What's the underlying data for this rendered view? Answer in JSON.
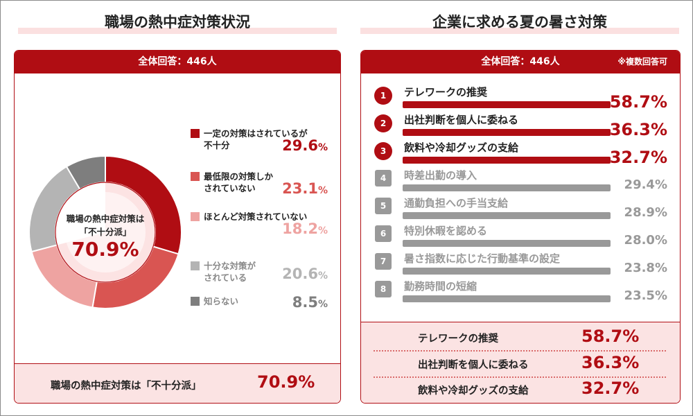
{
  "left": {
    "title": "職場の熱中症対策状況",
    "header": "全体回答：446人",
    "center_line1": "職場の熱中症対策は",
    "center_line2": "「不十分派」",
    "center_value": "70.9%",
    "summary_label": "職場の熱中症対策は「不十分派」",
    "summary_value": "70.9%"
  },
  "right": {
    "title": "企業に求める夏の暑さ対策",
    "header": "全体回答：446人",
    "note": "※複数回答可",
    "top3": [
      {
        "label": "テレワークの推奨",
        "value": "58.7%"
      },
      {
        "label": "出社判断を個人に委ねる",
        "value": "36.3%"
      },
      {
        "label": "飲料や冷却グッズの支給",
        "value": "32.7%"
      }
    ]
  },
  "chart_data": [
    {
      "type": "pie",
      "variant": "donut",
      "categories": [
        "一定の対策はされているが不十分",
        "最低限の対策しかされていない",
        "ほとんど対策されていない",
        "十分な対策がされている",
        "知らない"
      ],
      "values": [
        29.6,
        23.1,
        18.2,
        20.6,
        8.5
      ],
      "value_labels": [
        "29.6",
        "23.1",
        "18.2",
        "20.6",
        "8.5"
      ],
      "unit": "%",
      "colors": [
        "#b00d13",
        "#d95552",
        "#eea3a1",
        "#b4b4b4",
        "#7e7e7e"
      ],
      "pct_colors": [
        "#b00d13",
        "#d95552",
        "#eea3a1",
        "#b4b4b4",
        "#7e7e7e"
      ],
      "legend_lines": [
        [
          "一定の対策はされているが",
          "不十分"
        ],
        [
          "最低限の対策しか",
          "されていない"
        ],
        [
          "ほとんど対策されていない"
        ],
        [
          "十分な対策が",
          "されている"
        ],
        [
          "知らない"
        ]
      ],
      "inner_ring": {
        "value": 70.9,
        "color": "#fce3e3"
      },
      "legend_position": "right"
    },
    {
      "type": "bar",
      "orientation": "horizontal",
      "categories": [
        "テレワークの推奨",
        "出社判断を個人に委ねる",
        "飲料や冷却グッズの支給",
        "時差出勤の導入",
        "通勤負担への手当支給",
        "特別休暇を認める",
        "暑さ指数に応じた行動基準の設定",
        "勤務時間の短縮"
      ],
      "ranks": [
        "1",
        "2",
        "3",
        "4",
        "5",
        "6",
        "7",
        "8"
      ],
      "values": [
        58.7,
        36.3,
        32.7,
        29.4,
        28.9,
        28.0,
        23.8,
        23.5
      ],
      "value_labels": [
        "58.7%",
        "36.3%",
        "32.7%",
        "29.4%",
        "28.9%",
        "28.0%",
        "23.8%",
        "23.5%"
      ],
      "highlight_color": "#b00d13",
      "muted_color": "#999999",
      "highlight_count": 3
    }
  ]
}
